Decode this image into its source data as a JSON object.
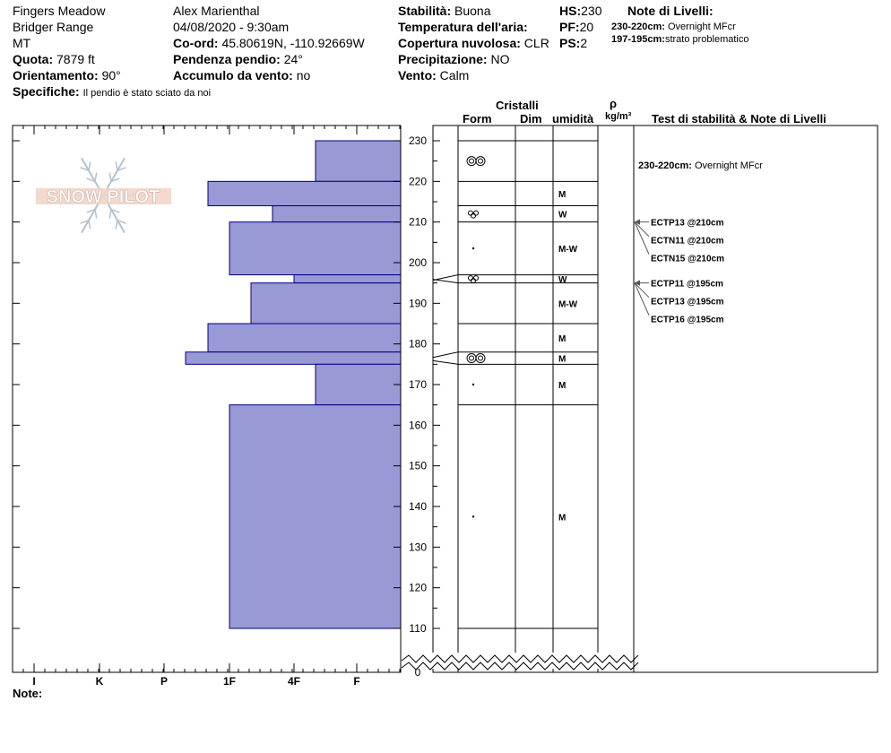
{
  "header": {
    "location": "Fingers Meadow",
    "range": "Bridger Range",
    "state": "MT",
    "elevation_label": "Quota:",
    "elevation_value": "7879 ft",
    "aspect_label": "Orientamento:",
    "aspect_value": "90°",
    "specifics_label": "Specifiche:",
    "specifics_value": "Il pendio è stato sciato da noi",
    "observer": "Alex Marienthal",
    "datetime": "04/08/2020 - 9:30am",
    "coord_label": "Co-ord:",
    "coord_value": "45.80619N, -110.92669W",
    "slope_label": "Pendenza pendio:",
    "slope_value": "24°",
    "wind_load_label": "Accumulo da vento:",
    "wind_load_value": "no",
    "stability_label": "Stabilità:",
    "stability_value": "Buona",
    "air_temp_label": "Temperatura dell'aria:",
    "cloud_label": "Copertura nuvolosa:",
    "cloud_value": "CLR",
    "precip_label": "Precipitazione:",
    "precip_value": "NO",
    "wind_label": "Vento:",
    "wind_value": "Calm",
    "hs_label": "HS:",
    "hs_value": "230",
    "pf_label": "PF:",
    "pf_value": "20",
    "ps_label": "PS:",
    "ps_value": "2",
    "layer_notes_title": "Note di Livelli:",
    "layer_notes": [
      {
        "range": "230-220cm:",
        "text": "Overnight MFcr"
      },
      {
        "range": "197-195cm:",
        "text": "strato problematico"
      }
    ]
  },
  "columns": {
    "crystals": "Cristalli",
    "form": "Form",
    "size": "Dim",
    "moisture": "umidità",
    "rho": "ρ",
    "density_unit": "kg/m³",
    "tests": "Test di stabilità & Note di Livelli"
  },
  "footer": {
    "note_label": "Note:"
  },
  "logo_text": "SNOW PILOT",
  "colors": {
    "hardness_fill": "#9999d6",
    "hardness_stroke": "#000080"
  },
  "chart_data": {
    "type": "bar",
    "orientation": "horizontal",
    "y_unit": "cm",
    "ylim": [
      0,
      235
    ],
    "y_ticks": [
      0,
      110,
      120,
      130,
      140,
      150,
      160,
      170,
      180,
      190,
      200,
      210,
      220,
      230
    ],
    "y_break": [
      0,
      110
    ],
    "x_categories": [
      "I",
      "K",
      "P",
      "1F",
      "4F",
      "F"
    ],
    "layers": [
      {
        "top": 230,
        "bottom": 220,
        "hardness": "4F-"
      },
      {
        "top": 220,
        "bottom": 214,
        "hardness": "1F+"
      },
      {
        "top": 214,
        "bottom": 210,
        "hardness": "4F+"
      },
      {
        "top": 210,
        "bottom": 197,
        "hardness": "1F"
      },
      {
        "top": 197,
        "bottom": 195,
        "hardness": "4F"
      },
      {
        "top": 195,
        "bottom": 185,
        "hardness": "1F-"
      },
      {
        "top": 185,
        "bottom": 178,
        "hardness": "1F+"
      },
      {
        "top": 178,
        "bottom": 175,
        "hardness": "P-"
      },
      {
        "top": 175,
        "bottom": 165,
        "hardness": "4F-"
      },
      {
        "top": 165,
        "bottom": 110,
        "hardness": "1F"
      }
    ],
    "layer_details": [
      {
        "top": 230,
        "bottom": 220,
        "form": "MFcr",
        "moisture": ""
      },
      {
        "top": 220,
        "bottom": 214,
        "form": "",
        "moisture": "M"
      },
      {
        "top": 214,
        "bottom": 210,
        "form": "FC",
        "moisture": "W"
      },
      {
        "top": 210,
        "bottom": 197,
        "form": "PP",
        "moisture": "M-W"
      },
      {
        "top": 197,
        "bottom": 195,
        "form": "FC",
        "moisture": "W"
      },
      {
        "top": 195,
        "bottom": 185,
        "form": "",
        "moisture": "M-W"
      },
      {
        "top": 185,
        "bottom": 178,
        "form": "",
        "moisture": "M"
      },
      {
        "top": 178,
        "bottom": 175,
        "form": "MFcr",
        "moisture": "M"
      },
      {
        "top": 175,
        "bottom": 165,
        "form": "PP",
        "moisture": "M"
      },
      {
        "top": 165,
        "bottom": 110,
        "form": "PP",
        "moisture": "M"
      }
    ],
    "tests": [
      {
        "label": "ECTP13 @210cm",
        "depth": 210,
        "group": 0
      },
      {
        "label": "ECTN11 @210cm",
        "depth": 210,
        "group": 0
      },
      {
        "label": "ECTN15 @210cm",
        "depth": 210,
        "group": 0
      },
      {
        "label": "ECTP11 @195cm",
        "depth": 195,
        "group": 1
      },
      {
        "label": "ECTP13 @195cm",
        "depth": 195,
        "group": 1
      },
      {
        "label": "ECTP16 @195cm",
        "depth": 195,
        "group": 1
      }
    ],
    "notes_on_chart": [
      {
        "range": "230-220cm:",
        "text": "Overnight MFcr",
        "depth": 224
      }
    ]
  }
}
